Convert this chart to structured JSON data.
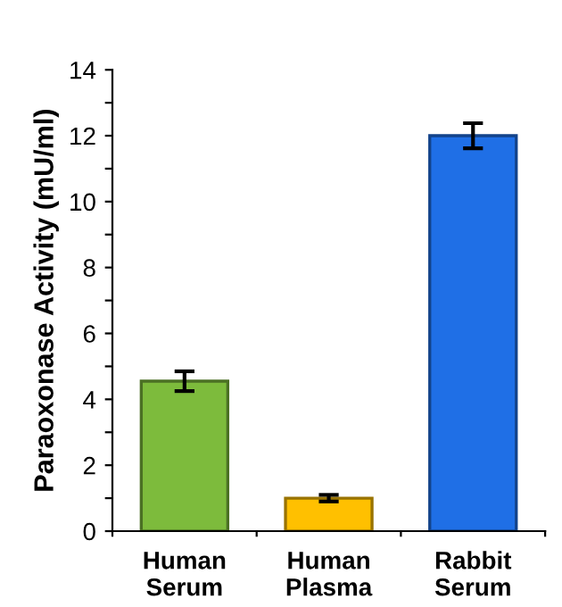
{
  "chart_data": {
    "type": "bar",
    "ylabel": "Paraoxonase Activity (mU/ml)",
    "categories": [
      "Human\nSerum",
      "Human\nPlasma",
      "Rabbit\nSerum"
    ],
    "values": [
      4.55,
      1.0,
      12.0
    ],
    "errors": [
      0.3,
      0.1,
      0.38
    ],
    "colors": [
      "#7dbb3c",
      "#ffc000",
      "#1f6fe6"
    ],
    "ylim": [
      0,
      14
    ],
    "yticks": [
      0,
      {
        "value": 1,
        "label": null
      },
      2,
      {
        "value": 3,
        "label": null
      },
      4,
      {
        "value": 5,
        "label": null
      },
      6,
      {
        "value": 7,
        "label": null
      },
      8,
      {
        "value": 9,
        "label": null
      },
      10,
      {
        "value": 11,
        "label": null
      },
      12,
      {
        "value": 13,
        "label": null
      },
      14
    ],
    "grid": false,
    "legend": false
  }
}
